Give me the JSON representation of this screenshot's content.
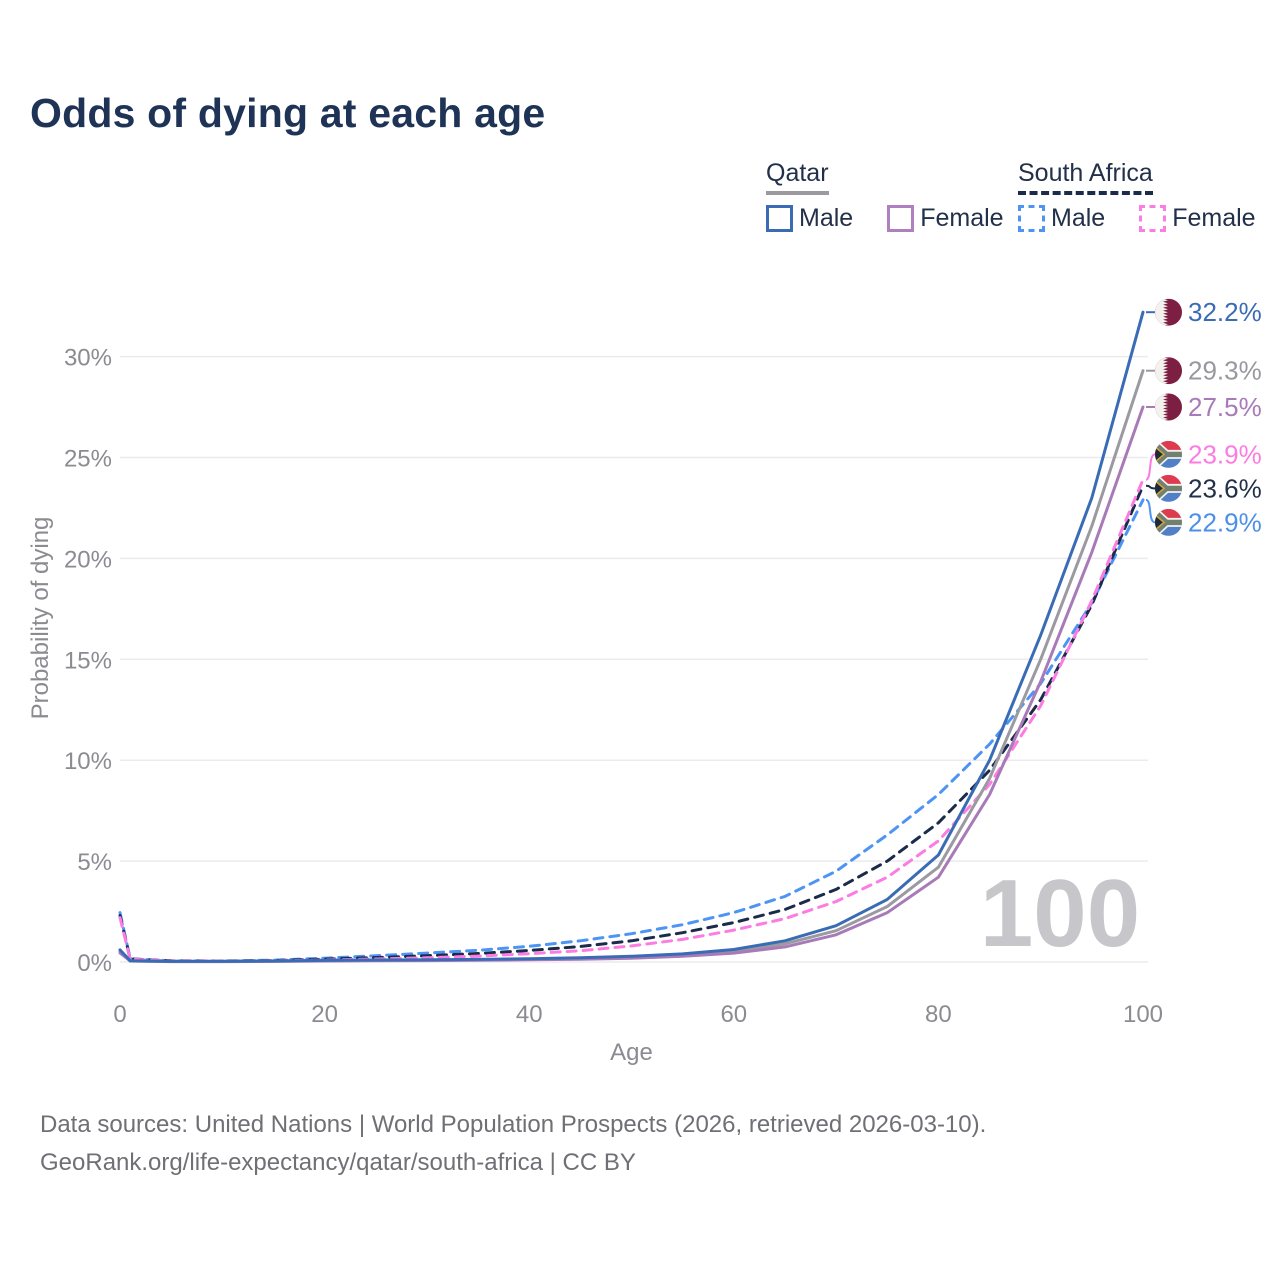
{
  "title": "Odds of dying at each age",
  "legend": {
    "groups": [
      {
        "name": "Qatar",
        "line_style": "solid",
        "underline_color": "#9a9aa0",
        "items": [
          {
            "label": "Male",
            "color": "#3a6cb5",
            "dashed": false
          },
          {
            "label": "Female",
            "color": "#b07fc0",
            "dashed": false
          }
        ]
      },
      {
        "name": "South Africa",
        "line_style": "dashed",
        "underline_color": "#1b2b4a",
        "items": [
          {
            "label": "Male",
            "color": "#4d94f5",
            "dashed": true
          },
          {
            "label": "Female",
            "color": "#fb7ce2",
            "dashed": true
          }
        ]
      }
    ]
  },
  "watermark": "100",
  "footer": {
    "line1": "Data sources: United Nations | World Population Prospects (2026, retrieved 2026-03-10).",
    "line2": "GeoRank.org/life-expectancy/qatar/south-africa | CC BY"
  },
  "chart_data": {
    "type": "line",
    "title": "Odds of dying at each age",
    "xlabel": "Age",
    "ylabel": "Probability of dying",
    "xlim": [
      0,
      100
    ],
    "ylim_percent": [
      0,
      33
    ],
    "x_ticks": [
      0,
      20,
      40,
      60,
      80,
      100
    ],
    "y_ticks_percent": [
      0,
      5,
      10,
      15,
      20,
      25,
      30
    ],
    "grid": true,
    "legend_position": "top-right",
    "x": [
      0,
      1,
      5,
      10,
      15,
      20,
      25,
      30,
      35,
      40,
      45,
      50,
      55,
      60,
      65,
      70,
      75,
      80,
      85,
      90,
      95,
      100
    ],
    "series": [
      {
        "name": "South Africa Male",
        "country": "South Africa",
        "sex": "Male",
        "color": "#4d94f5",
        "line_style": "dashed",
        "flag": "za",
        "end_label": "22.9%",
        "end_value": 22.9,
        "label_color": "#4d8fe8",
        "values": [
          2.45,
          0.16,
          0.06,
          0.05,
          0.09,
          0.19,
          0.31,
          0.44,
          0.58,
          0.78,
          1.05,
          1.4,
          1.85,
          2.45,
          3.25,
          4.5,
          6.3,
          8.3,
          10.8,
          13.8,
          17.8,
          22.9
        ]
      },
      {
        "name": "South Africa",
        "country": "South Africa",
        "sex": "Both",
        "color": "#1b2b4a",
        "line_style": "dashed",
        "flag": "za",
        "end_label": "23.6%",
        "end_value": 23.6,
        "label_color": "#22304a",
        "values": [
          2.3,
          0.15,
          0.06,
          0.05,
          0.07,
          0.14,
          0.22,
          0.31,
          0.42,
          0.57,
          0.77,
          1.05,
          1.45,
          1.95,
          2.6,
          3.6,
          5.0,
          6.9,
          9.5,
          13.0,
          17.7,
          23.6
        ]
      },
      {
        "name": "South Africa Female",
        "country": "South Africa",
        "sex": "Female",
        "color": "#fb7ce2",
        "line_style": "dashed",
        "flag": "za",
        "end_label": "23.9%",
        "end_value": 23.9,
        "label_color": "#fb7ce2",
        "values": [
          2.2,
          0.14,
          0.05,
          0.04,
          0.06,
          0.1,
          0.15,
          0.21,
          0.29,
          0.41,
          0.56,
          0.8,
          1.12,
          1.58,
          2.15,
          3.0,
          4.2,
          6.0,
          8.8,
          12.7,
          17.9,
          23.9
        ]
      },
      {
        "name": "Qatar",
        "country": "Qatar",
        "sex": "Both",
        "color": "#9a9aa0",
        "line_style": "solid",
        "flag": "qa",
        "end_label": "29.3%",
        "end_value": 29.3,
        "label_color": "#98989e",
        "values": [
          0.52,
          0.05,
          0.03,
          0.03,
          0.04,
          0.06,
          0.08,
          0.09,
          0.11,
          0.14,
          0.18,
          0.24,
          0.34,
          0.53,
          0.9,
          1.55,
          2.75,
          4.7,
          9.1,
          15.0,
          21.6,
          29.3
        ]
      },
      {
        "name": "Qatar Female",
        "country": "Qatar",
        "sex": "Female",
        "color": "#a87ab8",
        "line_style": "solid",
        "flag": "qa",
        "end_label": "27.5%",
        "end_value": 27.5,
        "label_color": "#a87ab8",
        "values": [
          0.45,
          0.05,
          0.02,
          0.02,
          0.03,
          0.05,
          0.06,
          0.07,
          0.09,
          0.11,
          0.14,
          0.19,
          0.28,
          0.44,
          0.75,
          1.35,
          2.45,
          4.2,
          8.3,
          13.9,
          20.3,
          27.5
        ]
      },
      {
        "name": "Qatar Male",
        "country": "Qatar",
        "sex": "Male",
        "color": "#3a6cb5",
        "line_style": "solid",
        "flag": "qa",
        "end_label": "32.2%",
        "end_value": 32.2,
        "label_color": "#3a6bb5",
        "values": [
          0.6,
          0.06,
          0.03,
          0.03,
          0.05,
          0.08,
          0.1,
          0.11,
          0.13,
          0.16,
          0.21,
          0.28,
          0.4,
          0.62,
          1.05,
          1.8,
          3.1,
          5.3,
          10.0,
          16.2,
          23.0,
          32.2
        ]
      }
    ]
  }
}
